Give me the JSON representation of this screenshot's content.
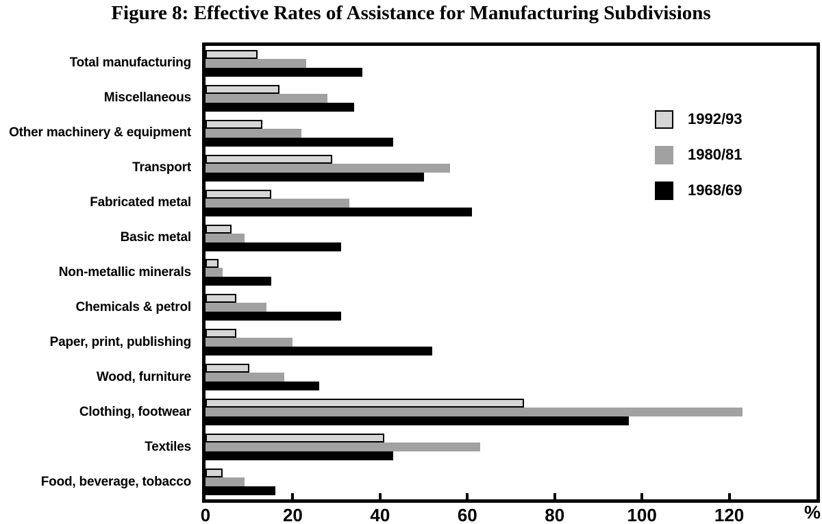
{
  "chart_data": {
    "type": "bar",
    "orientation": "horizontal",
    "title": "Figure 8: Effective Rates of Assistance for Manufacturing Subdivisions",
    "categories": [
      "Total manufacturing",
      "Miscellaneous",
      "Other machinery & equipment",
      "Transport",
      "Fabricated metal",
      "Basic metal",
      "Non-metallic minerals",
      "Chemicals & petrol",
      "Paper, print, publishing",
      "Wood, furniture",
      "Clothing, footwear",
      "Textiles",
      "Food, beverage, tobacco"
    ],
    "series": [
      {
        "name": "1992/93",
        "color": "#d6d6d6",
        "border_color": "#000000",
        "values": [
          12,
          17,
          13,
          29,
          15,
          6,
          3,
          7,
          7,
          10,
          73,
          41,
          4
        ]
      },
      {
        "name": "1980/81",
        "color": "#a1a1a1",
        "border_color": null,
        "values": [
          23,
          28,
          22,
          56,
          33,
          9,
          4,
          14,
          20,
          18,
          123,
          63,
          9
        ]
      },
      {
        "name": "1968/69",
        "color": "#000000",
        "border_color": null,
        "values": [
          36,
          34,
          43,
          50,
          61,
          31,
          15,
          31,
          52,
          26,
          97,
          43,
          16
        ]
      }
    ],
    "xlabel": "%",
    "xlim": [
      0,
      140
    ],
    "xticks": [
      0,
      20,
      40,
      60,
      80,
      100,
      120
    ],
    "grid": false,
    "legend_position": "upper right",
    "frame_color": "#000000",
    "background_color": "#ffffff"
  }
}
